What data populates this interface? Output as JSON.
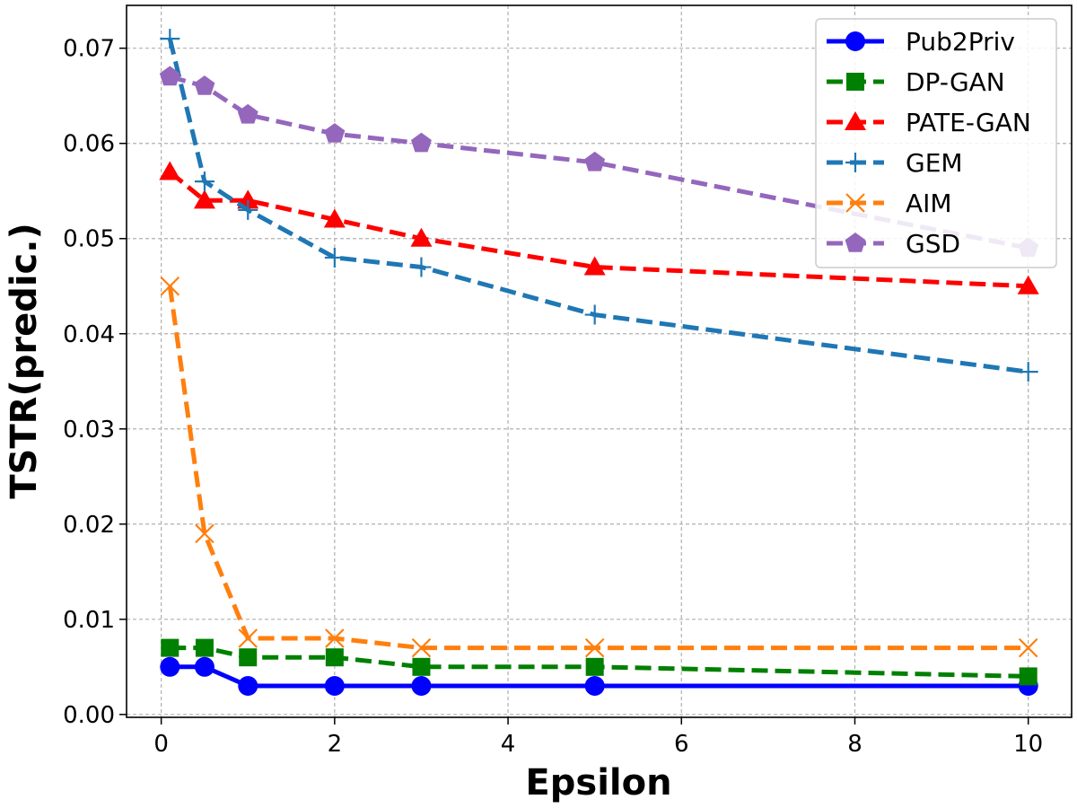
{
  "chart_data": {
    "type": "line",
    "title": "",
    "xlabel": "Epsilon",
    "ylabel": "TSTR(predic.)",
    "xlim": [
      -0.4,
      10.5
    ],
    "ylim": [
      -0.0003,
      0.0745
    ],
    "xticks": [
      0,
      2,
      4,
      6,
      8,
      10
    ],
    "xtick_labels": [
      "0",
      "2",
      "4",
      "6",
      "8",
      "10"
    ],
    "yticks": [
      0.0,
      0.01,
      0.02,
      0.03,
      0.04,
      0.05,
      0.06,
      0.07
    ],
    "ytick_labels": [
      "0.00",
      "0.01",
      "0.02",
      "0.03",
      "0.04",
      "0.05",
      "0.06",
      "0.07"
    ],
    "grid": true,
    "legend_position": "top-right",
    "x": [
      0.1,
      0.5,
      1,
      2,
      3,
      5,
      10
    ],
    "series": [
      {
        "name": "Pub2Priv",
        "color": "#0000ff",
        "marker": "circle",
        "dashed": false,
        "values": [
          0.005,
          0.005,
          0.003,
          0.003,
          0.003,
          0.003,
          0.003
        ]
      },
      {
        "name": "DP-GAN",
        "color": "#008000",
        "marker": "square",
        "dashed": true,
        "values": [
          0.007,
          0.007,
          0.006,
          0.006,
          0.005,
          0.005,
          0.004
        ]
      },
      {
        "name": "PATE-GAN",
        "color": "#ff0000",
        "marker": "triangle",
        "dashed": true,
        "values": [
          0.057,
          0.054,
          0.054,
          0.052,
          0.05,
          0.047,
          0.045
        ]
      },
      {
        "name": "GEM",
        "color": "#1f77b4",
        "marker": "plus",
        "dashed": true,
        "values": [
          0.071,
          0.056,
          0.053,
          0.048,
          0.047,
          0.042,
          0.036
        ]
      },
      {
        "name": "AIM",
        "color": "#ff7f0e",
        "marker": "x",
        "dashed": true,
        "values": [
          0.045,
          0.019,
          0.008,
          0.008,
          0.007,
          0.007,
          0.007
        ]
      },
      {
        "name": "GSD",
        "color": "#9467bd",
        "marker": "pentagon",
        "dashed": true,
        "values": [
          0.067,
          0.066,
          0.063,
          0.061,
          0.06,
          0.058,
          0.049
        ]
      }
    ]
  }
}
